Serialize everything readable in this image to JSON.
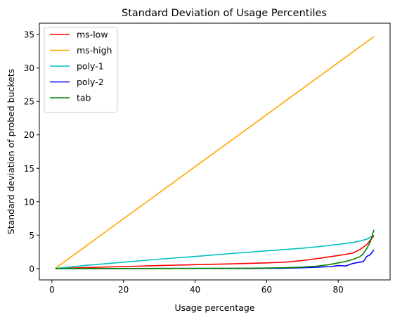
{
  "chart_data": {
    "type": "line",
    "title": "Standard Deviation of Usage Percentiles",
    "xlabel": "Usage percentage",
    "ylabel": "Standard deviation of probed buckets",
    "xlim": [
      -3.5,
      94.5
    ],
    "ylim": [
      -1.7,
      36.7
    ],
    "xticks": [
      0,
      20,
      40,
      60,
      80
    ],
    "yticks": [
      0,
      5,
      10,
      15,
      20,
      25,
      30,
      35
    ],
    "grid": false,
    "legend_position": "top-left",
    "series": [
      {
        "name": "ms-low",
        "color": "#ff0000",
        "points": [
          [
            1,
            0
          ],
          [
            10,
            0.15
          ],
          [
            20,
            0.3
          ],
          [
            30,
            0.45
          ],
          [
            40,
            0.58
          ],
          [
            50,
            0.7
          ],
          [
            60,
            0.85
          ],
          [
            65,
            0.95
          ],
          [
            70,
            1.2
          ],
          [
            75,
            1.55
          ],
          [
            80,
            1.95
          ],
          [
            84,
            2.3
          ],
          [
            86,
            2.8
          ],
          [
            88,
            3.6
          ],
          [
            90,
            4.9
          ]
        ]
      },
      {
        "name": "ms-high",
        "color": "#ffa500",
        "points": [
          [
            1,
            0.05
          ],
          [
            90,
            34.7
          ]
        ]
      },
      {
        "name": "poly-1",
        "color": "#00bfbf",
        "points": [
          [
            1,
            0
          ],
          [
            10,
            0.5
          ],
          [
            20,
            0.95
          ],
          [
            30,
            1.4
          ],
          [
            40,
            1.8
          ],
          [
            50,
            2.25
          ],
          [
            60,
            2.65
          ],
          [
            70,
            3.05
          ],
          [
            75,
            3.3
          ],
          [
            80,
            3.6
          ],
          [
            84,
            3.9
          ],
          [
            86,
            4.1
          ],
          [
            88,
            4.4
          ],
          [
            90,
            5.0
          ]
        ]
      },
      {
        "name": "poly-2",
        "color": "#0000ff",
        "points": [
          [
            1,
            0
          ],
          [
            20,
            0
          ],
          [
            40,
            0.01
          ],
          [
            55,
            0.02
          ],
          [
            65,
            0.06
          ],
          [
            70,
            0.12
          ],
          [
            74,
            0.2
          ],
          [
            78,
            0.3
          ],
          [
            80,
            0.45
          ],
          [
            82,
            0.38
          ],
          [
            84,
            0.75
          ],
          [
            86,
            0.95
          ],
          [
            87,
            1.05
          ],
          [
            88,
            1.8
          ],
          [
            89,
            2.1
          ],
          [
            90,
            2.8
          ]
        ]
      },
      {
        "name": "tab",
        "color": "#008000",
        "points": [
          [
            1,
            0
          ],
          [
            20,
            0
          ],
          [
            40,
            0.02
          ],
          [
            55,
            0.05
          ],
          [
            65,
            0.12
          ],
          [
            70,
            0.22
          ],
          [
            74,
            0.35
          ],
          [
            77,
            0.55
          ],
          [
            80,
            0.85
          ],
          [
            82,
            1.05
          ],
          [
            84,
            1.35
          ],
          [
            86,
            1.75
          ],
          [
            87,
            2.2
          ],
          [
            88,
            3.0
          ],
          [
            89,
            4.0
          ],
          [
            90,
            5.8
          ]
        ]
      }
    ]
  }
}
